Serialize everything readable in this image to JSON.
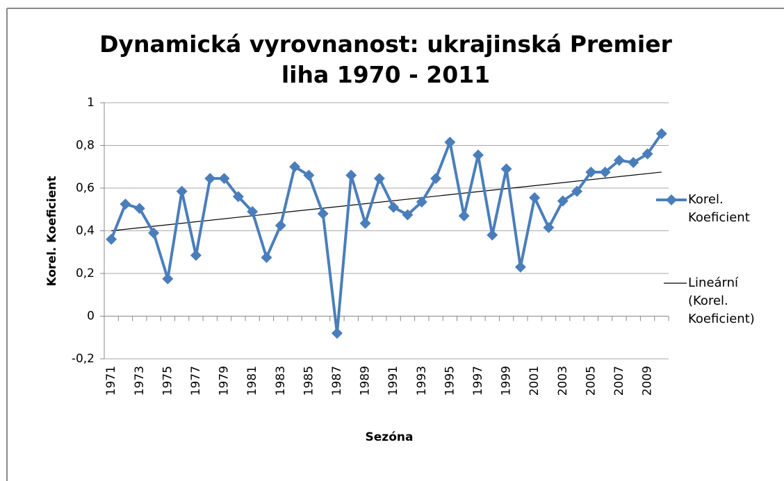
{
  "chart_data": {
    "type": "line",
    "title": "Dynamická vyrovnanost: ukrajinská Premier liha 1970 - 2011",
    "x_label": "Sezóna",
    "y_label": "Korel. Koeficient",
    "categories": [
      "1971",
      null,
      "1973",
      null,
      "1975",
      null,
      "1977",
      null,
      "1979",
      null,
      "1981",
      null,
      "1983",
      null,
      "1985",
      null,
      "1987",
      null,
      "1989",
      null,
      "1991",
      null,
      "1993",
      null,
      "1995",
      null,
      "1997",
      null,
      "1999",
      null,
      "2001",
      null,
      "2003",
      null,
      "2005",
      null,
      "2007",
      null,
      "2009",
      null
    ],
    "series": [
      {
        "name": "Korel. Koeficient",
        "color": "#4a7ebb",
        "values": [
          0.36,
          0.525,
          0.505,
          0.39,
          0.175,
          0.585,
          0.285,
          0.645,
          0.645,
          0.56,
          0.49,
          0.275,
          0.425,
          0.7,
          0.66,
          0.48,
          -0.08,
          0.66,
          0.435,
          0.645,
          0.51,
          0.475,
          0.535,
          0.645,
          0.815,
          0.47,
          0.755,
          0.38,
          0.69,
          0.23,
          0.555,
          0.415,
          0.54,
          0.585,
          0.675,
          0.675,
          0.73,
          0.72,
          0.76,
          0.855
        ]
      }
    ],
    "trendline": {
      "name": "Lineární (Korel. Koeficient)",
      "color": "#000000",
      "values": [
        0.4,
        0.675
      ]
    },
    "ylim": [
      -0.2,
      1
    ],
    "yticks": [
      {
        "value": -0.2,
        "label": "-0,2"
      },
      0,
      {
        "value": 0.2,
        "label": "0,2"
      },
      {
        "value": 0.4,
        "label": "0,4"
      },
      {
        "value": 0.6,
        "label": "0,6"
      },
      {
        "value": 0.8,
        "label": "0,8"
      },
      1
    ],
    "grid": true,
    "legend": "right"
  }
}
